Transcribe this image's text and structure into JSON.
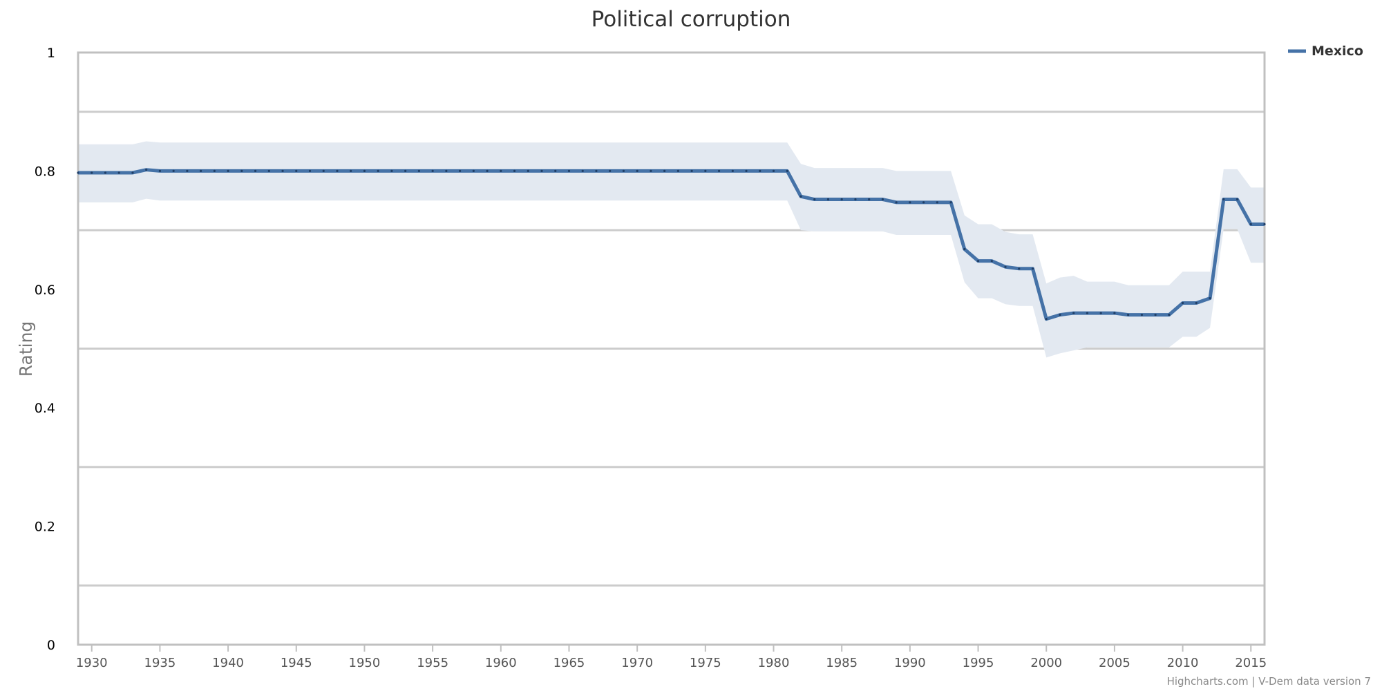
{
  "chart_data": {
    "type": "line",
    "title": "Political corruption",
    "ylabel": "Rating",
    "xlabel": "",
    "xlim": [
      1929,
      2016
    ],
    "ylim": [
      0,
      1
    ],
    "y_ticks": [
      0,
      0.2,
      0.4,
      0.6,
      0.8,
      1
    ],
    "y_tick_labels": [
      "0",
      "0.2",
      "0.4",
      "0.6",
      "0.8",
      "1"
    ],
    "x_ticks": [
      1930,
      1935,
      1940,
      1945,
      1950,
      1955,
      1960,
      1965,
      1970,
      1975,
      1980,
      1985,
      1990,
      1995,
      2000,
      2005,
      2010,
      2015
    ],
    "x_tick_labels": [
      "1930",
      "1935",
      "1940",
      "1945",
      "1950",
      "1955",
      "1960",
      "1965",
      "1970",
      "1975",
      "1980",
      "1985",
      "1990",
      "1995",
      "2000",
      "2005",
      "2010",
      "2015"
    ],
    "gridlines_y": [
      0.1,
      0.3,
      0.5,
      0.7,
      0.9
    ],
    "grid": true,
    "legend_position": "top-right",
    "credits": "Highcharts.com | V-Dem data version 7",
    "colors": {
      "line": "#4572a7",
      "band": "#e3e9f1",
      "grid": "#cccccc",
      "axis": "#c0c0c0"
    },
    "series": [
      {
        "name": "Mexico",
        "x": [
          1929,
          1930,
          1931,
          1932,
          1933,
          1934,
          1935,
          1936,
          1937,
          1938,
          1939,
          1940,
          1941,
          1942,
          1943,
          1944,
          1945,
          1946,
          1947,
          1948,
          1949,
          1950,
          1951,
          1952,
          1953,
          1954,
          1955,
          1956,
          1957,
          1958,
          1959,
          1960,
          1961,
          1962,
          1963,
          1964,
          1965,
          1966,
          1967,
          1968,
          1969,
          1970,
          1971,
          1972,
          1973,
          1974,
          1975,
          1976,
          1977,
          1978,
          1979,
          1980,
          1981,
          1982,
          1983,
          1984,
          1985,
          1986,
          1987,
          1988,
          1989,
          1990,
          1991,
          1992,
          1993,
          1994,
          1995,
          1996,
          1997,
          1998,
          1999,
          2000,
          2001,
          2002,
          2003,
          2004,
          2005,
          2006,
          2007,
          2008,
          2009,
          2010,
          2011,
          2012,
          2013,
          2014,
          2015,
          2016
        ],
        "values": [
          0.797,
          0.797,
          0.797,
          0.797,
          0.797,
          0.802,
          0.8,
          0.8,
          0.8,
          0.8,
          0.8,
          0.8,
          0.8,
          0.8,
          0.8,
          0.8,
          0.8,
          0.8,
          0.8,
          0.8,
          0.8,
          0.8,
          0.8,
          0.8,
          0.8,
          0.8,
          0.8,
          0.8,
          0.8,
          0.8,
          0.8,
          0.8,
          0.8,
          0.8,
          0.8,
          0.8,
          0.8,
          0.8,
          0.8,
          0.8,
          0.8,
          0.8,
          0.8,
          0.8,
          0.8,
          0.8,
          0.8,
          0.8,
          0.8,
          0.8,
          0.8,
          0.8,
          0.8,
          0.757,
          0.752,
          0.752,
          0.752,
          0.752,
          0.752,
          0.752,
          0.747,
          0.747,
          0.747,
          0.747,
          0.747,
          0.668,
          0.648,
          0.648,
          0.638,
          0.635,
          0.635,
          0.55,
          0.557,
          0.56,
          0.56,
          0.56,
          0.56,
          0.557,
          0.557,
          0.557,
          0.557,
          0.577,
          0.577,
          0.585,
          0.752,
          0.752,
          0.71,
          0.71
        ],
        "lower": [
          0.747,
          0.747,
          0.747,
          0.747,
          0.747,
          0.753,
          0.75,
          0.75,
          0.75,
          0.75,
          0.75,
          0.75,
          0.75,
          0.75,
          0.75,
          0.75,
          0.75,
          0.75,
          0.75,
          0.75,
          0.75,
          0.75,
          0.75,
          0.75,
          0.75,
          0.75,
          0.75,
          0.75,
          0.75,
          0.75,
          0.75,
          0.75,
          0.75,
          0.75,
          0.75,
          0.75,
          0.75,
          0.75,
          0.75,
          0.75,
          0.75,
          0.75,
          0.75,
          0.75,
          0.75,
          0.75,
          0.75,
          0.75,
          0.75,
          0.75,
          0.75,
          0.75,
          0.75,
          0.7,
          0.698,
          0.698,
          0.698,
          0.698,
          0.698,
          0.698,
          0.692,
          0.692,
          0.692,
          0.692,
          0.692,
          0.612,
          0.585,
          0.585,
          0.575,
          0.572,
          0.572,
          0.485,
          0.492,
          0.497,
          0.502,
          0.502,
          0.502,
          0.502,
          0.502,
          0.502,
          0.502,
          0.52,
          0.52,
          0.535,
          0.702,
          0.702,
          0.645,
          0.645
        ],
        "upper": [
          0.845,
          0.845,
          0.845,
          0.845,
          0.845,
          0.85,
          0.848,
          0.848,
          0.848,
          0.848,
          0.848,
          0.848,
          0.848,
          0.848,
          0.848,
          0.848,
          0.848,
          0.848,
          0.848,
          0.848,
          0.848,
          0.848,
          0.848,
          0.848,
          0.848,
          0.848,
          0.848,
          0.848,
          0.848,
          0.848,
          0.848,
          0.848,
          0.848,
          0.848,
          0.848,
          0.848,
          0.848,
          0.848,
          0.848,
          0.848,
          0.848,
          0.848,
          0.848,
          0.848,
          0.848,
          0.848,
          0.848,
          0.848,
          0.848,
          0.848,
          0.848,
          0.848,
          0.848,
          0.812,
          0.805,
          0.805,
          0.805,
          0.805,
          0.805,
          0.805,
          0.8,
          0.8,
          0.8,
          0.8,
          0.8,
          0.725,
          0.71,
          0.71,
          0.697,
          0.693,
          0.693,
          0.61,
          0.62,
          0.623,
          0.613,
          0.613,
          0.613,
          0.607,
          0.607,
          0.607,
          0.607,
          0.63,
          0.63,
          0.63,
          0.803,
          0.803,
          0.772,
          0.772
        ]
      }
    ]
  }
}
